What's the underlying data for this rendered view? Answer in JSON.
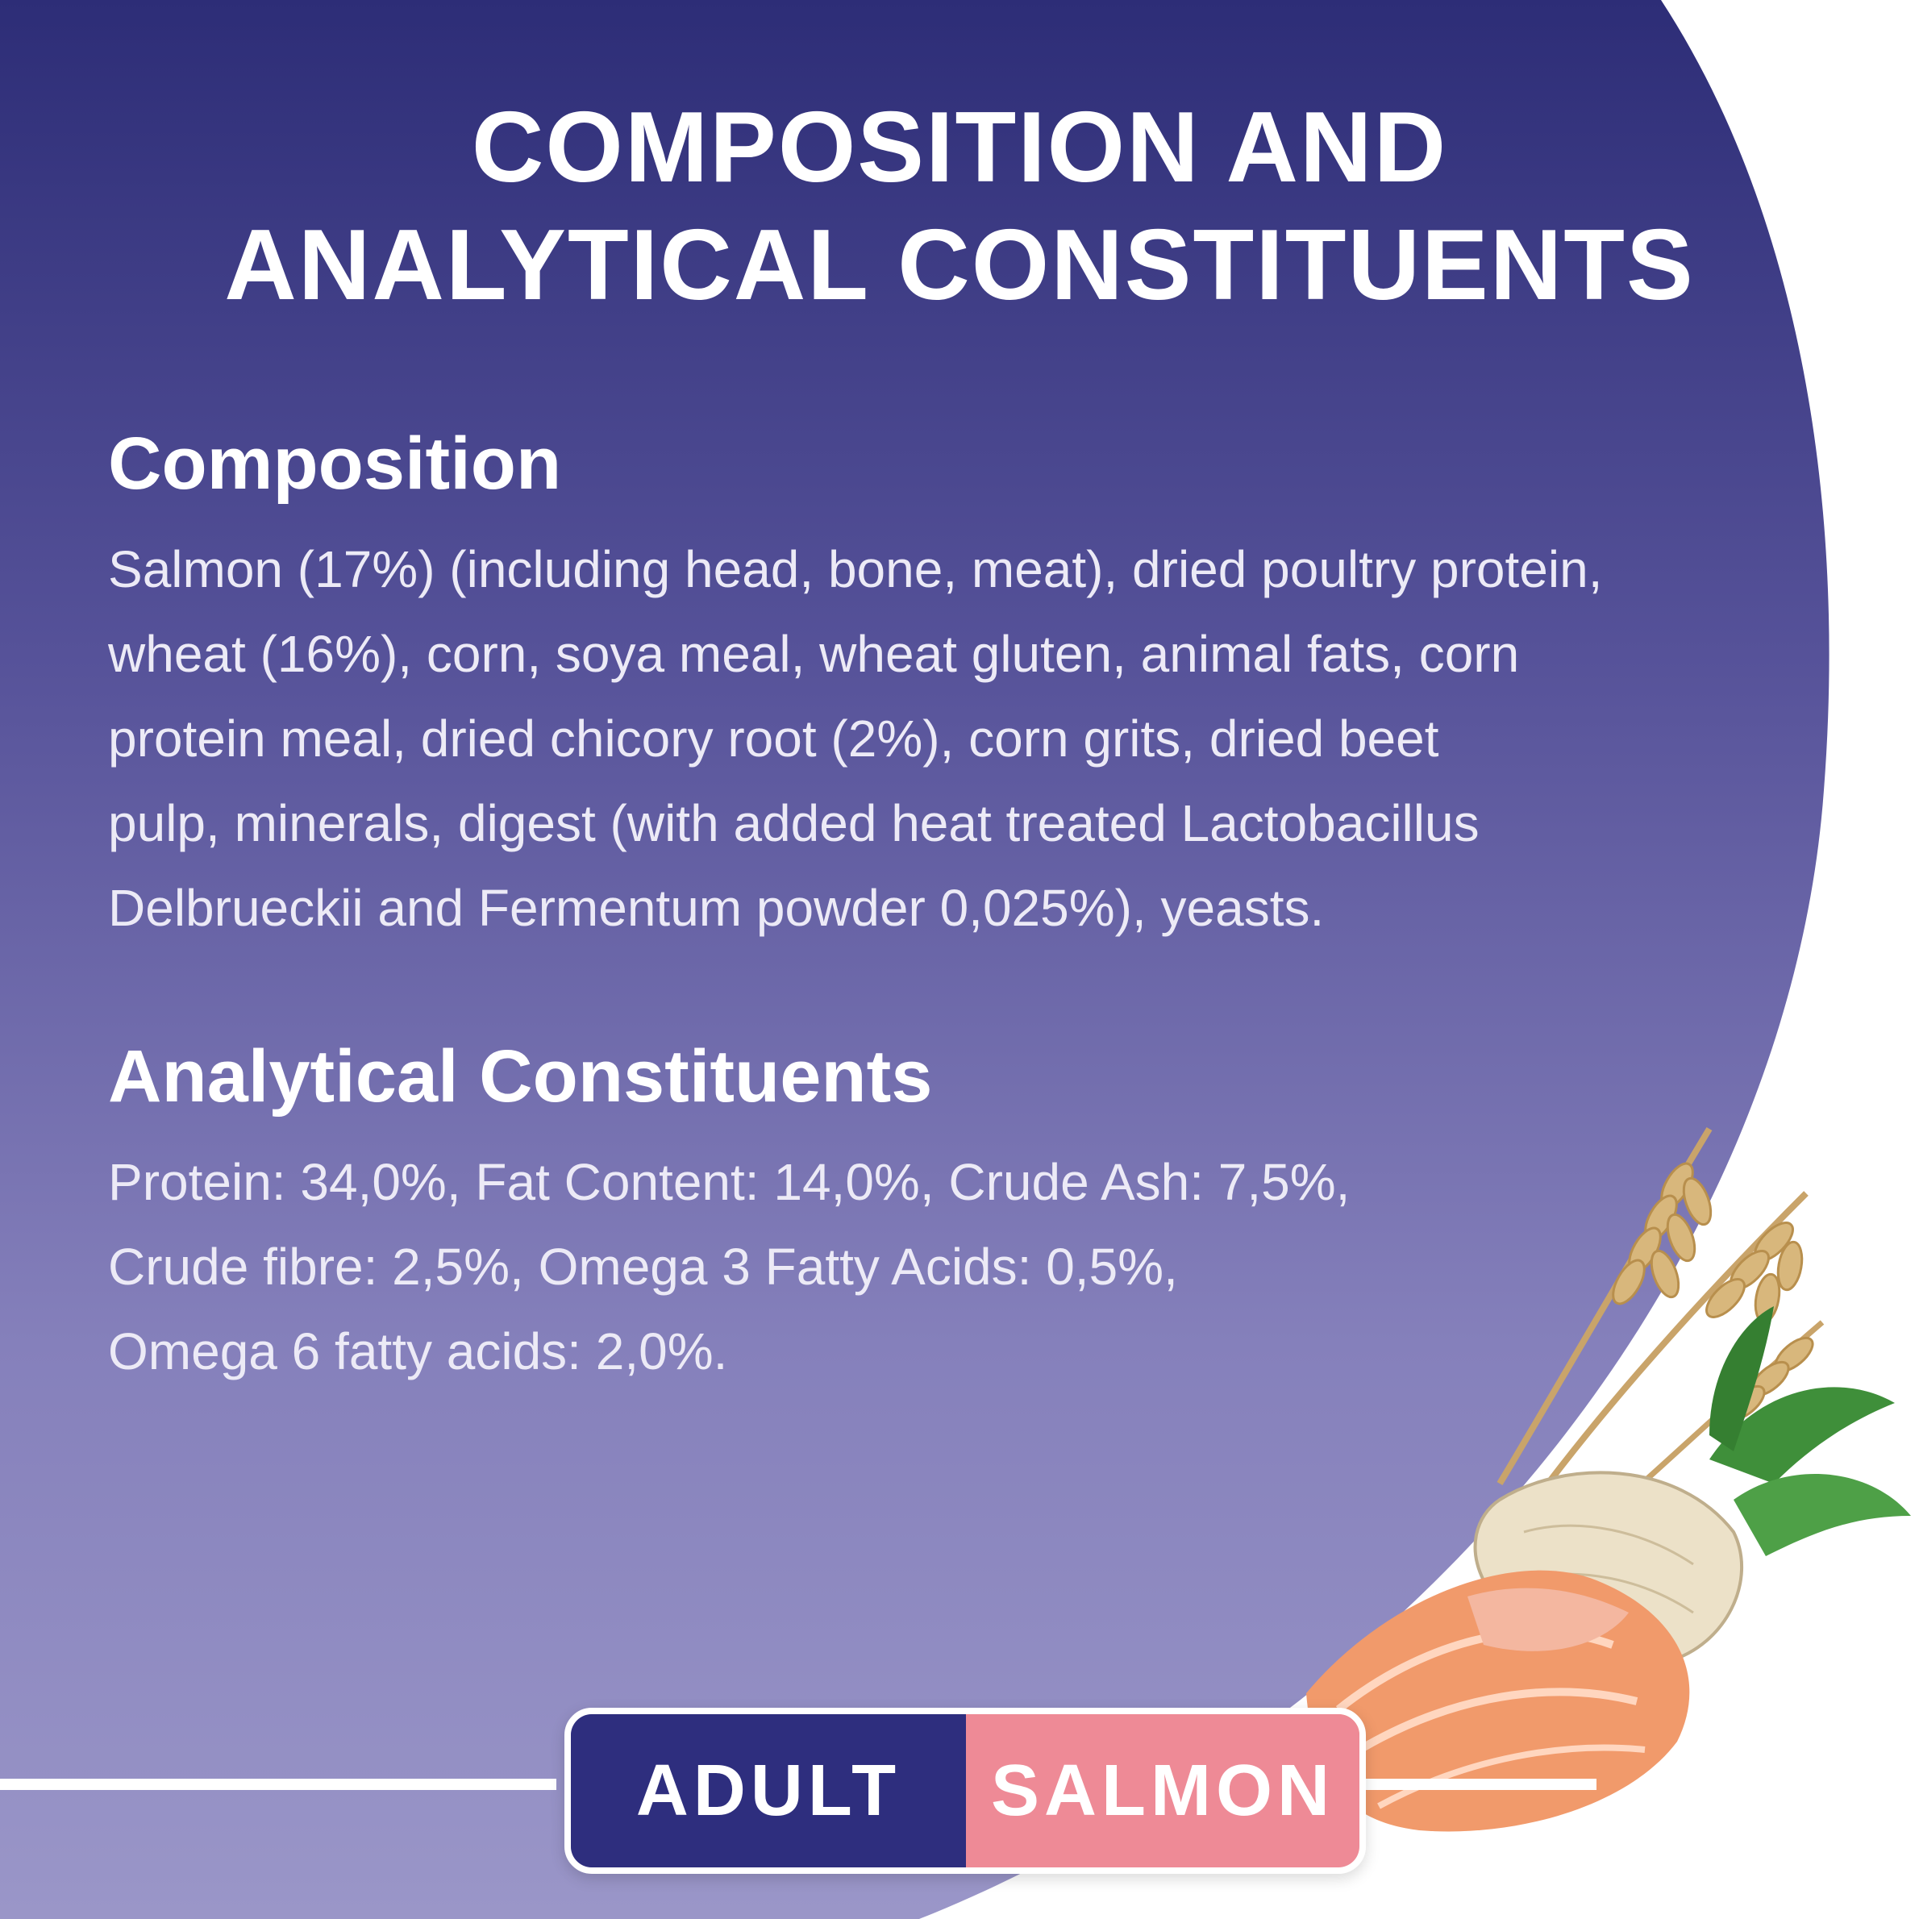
{
  "title": {
    "line1": "COMPOSITION AND",
    "line2": "ANALYTICAL CONSTITUENTS"
  },
  "composition": {
    "heading": "Composition",
    "lines": [
      "Salmon (17%) (including head, bone, meat), dried poultry protein,",
      "wheat (16%), corn, soya meal, wheat gluten, animal fats, corn",
      "protein meal, dried chicory root (2%), corn grits, dried beet",
      "pulp, minerals, digest (with added heat treated Lactobacillus",
      "Delbrueckii and Fermentum powder 0,025%), yeasts."
    ]
  },
  "analytical": {
    "heading": "Analytical Constituents",
    "lines": [
      "Protein: 34,0%, Fat Content: 14,0%, Crude Ash: 7,5%,",
      "Crude fibre: 2,5%, Omega 3 Fatty Acids: 0,5%,",
      "Omega 6 fatty acids: 2,0%."
    ]
  },
  "badge": {
    "left_label": "ADULT",
    "right_label": "SALMON"
  },
  "colors": {
    "gradient_top": "#2d2d77",
    "gradient_mid": "#6b66aa",
    "gradient_bottom": "#9a96c8",
    "badge_dark": "#2e2e7e",
    "badge_pink": "#ee8a96"
  },
  "illustration": {
    "icons": [
      "wheat-icon",
      "beet-root-icon",
      "salmon-fillet-icon"
    ]
  }
}
